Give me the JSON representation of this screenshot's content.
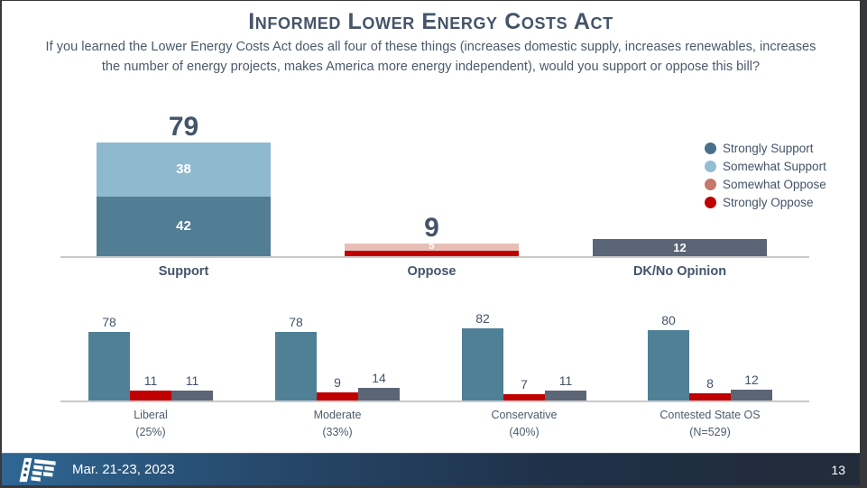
{
  "slide": {
    "title": "Informed Lower Energy Costs Act",
    "subtitle": "If you learned the Lower Energy Costs Act does all four of these things (increases domestic supply, increases renewables, increases the number of energy projects, makes America more energy independent), would you support or oppose this bill?"
  },
  "footer": {
    "date": "Mar. 21-23, 2023",
    "page_number": "13",
    "logo": "flag-logo"
  },
  "colors": {
    "title_text": "#44546a",
    "subtitle_text": "#4b5a6d",
    "axis_line": "#c9c9c9",
    "strongly_support": "#517e94",
    "somewhat_support": "#8fb9cf",
    "somewhat_oppose_bar": "#e7bfb6",
    "somewhat_oppose_legend": "#c4786c",
    "strongly_oppose": "#c00000",
    "dk_gray": "#5a6577",
    "subgroup_teal": "#4f8096",
    "subgroup_gray": "#5c6575",
    "footer_gradient_left": "#2f6693",
    "footer_gradient_right": "#222b39"
  },
  "legend": {
    "items": [
      {
        "label": "Strongly Support",
        "color": "#48708a"
      },
      {
        "label": "Somewhat Support",
        "color": "#92bdd3"
      },
      {
        "label": "Somewhat Oppose",
        "color": "#c4786c"
      },
      {
        "label": "Strongly Oppose",
        "color": "#c00000"
      }
    ]
  },
  "chart_data": [
    {
      "type": "bar",
      "stacked": true,
      "title": "",
      "categories": [
        "Support",
        "Oppose",
        "DK/No Opinion"
      ],
      "ylim": [
        0,
        100
      ],
      "grid": false,
      "legend_position": "right",
      "bars": [
        {
          "category": "Support",
          "total_label": "79",
          "segments_bottom_to_top": [
            {
              "name": "Strongly Support",
              "value": 42,
              "label": "42",
              "color": "#517e94"
            },
            {
              "name": "Somewhat Support",
              "value": 38,
              "label": "38",
              "color": "#8fb9cf"
            }
          ]
        },
        {
          "category": "Oppose",
          "total_label": "9",
          "segments_bottom_to_top": [
            {
              "name": "Strongly Oppose",
              "value": 4,
              "label": "",
              "color": "#c00000"
            },
            {
              "name": "Somewhat Oppose",
              "value": 5,
              "label": "5",
              "color": "#e7bfb6"
            }
          ]
        },
        {
          "category": "DK/No Opinion",
          "total_label": "",
          "segments_bottom_to_top": [
            {
              "name": "DK/No Opinion",
              "value": 12,
              "label": "12",
              "color": "#5a6577"
            }
          ]
        }
      ]
    },
    {
      "type": "bar",
      "stacked": false,
      "title": "",
      "ylim": [
        0,
        100
      ],
      "grid": false,
      "series": [
        {
          "name": "teal-support",
          "color": "#4f8096"
        },
        {
          "name": "red-oppose",
          "color": "#c00000"
        },
        {
          "name": "gray-dk",
          "color": "#5c6575"
        }
      ],
      "groups": [
        {
          "label": "Liberal",
          "sublabel": "(25%)",
          "values": [
            78,
            11,
            11
          ]
        },
        {
          "label": "Moderate",
          "sublabel": "(33%)",
          "values": [
            78,
            9,
            14
          ]
        },
        {
          "label": "Conservative",
          "sublabel": "(40%)",
          "values": [
            82,
            7,
            11
          ]
        },
        {
          "label": "Contested State OS",
          "sublabel": "(N=529)",
          "values": [
            80,
            8,
            12
          ]
        }
      ]
    }
  ]
}
